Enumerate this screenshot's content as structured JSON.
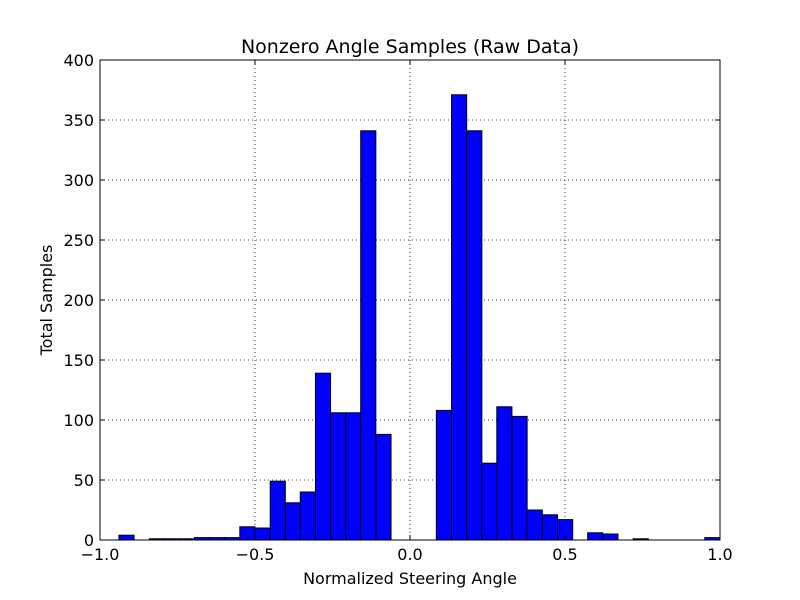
{
  "chart_data": {
    "type": "bar",
    "title": "Nonzero Angle Samples (Raw Data)",
    "xlabel": "Normalized Steering Angle",
    "ylabel": "Total Samples",
    "xlim": [
      -1.0,
      1.0
    ],
    "ylim": [
      0,
      400
    ],
    "xticks": [
      "−1.0",
      "−0.5",
      "0.0",
      "0.5",
      "1.0"
    ],
    "xtick_values": [
      -1.0,
      -0.5,
      0.0,
      0.5,
      1.0
    ],
    "yticks": [
      "0",
      "50",
      "100",
      "150",
      "200",
      "250",
      "300",
      "350",
      "400"
    ],
    "ytick_values": [
      0,
      50,
      100,
      150,
      200,
      250,
      300,
      350,
      400
    ],
    "grid": true,
    "bin_width": 0.0488,
    "bar_color": "#0000ff",
    "edge_color": "#000000",
    "bins": [
      {
        "x0": -0.939,
        "value": 4
      },
      {
        "x0": -0.89,
        "value": 0
      },
      {
        "x0": -0.841,
        "value": 1
      },
      {
        "x0": -0.793,
        "value": 1
      },
      {
        "x0": -0.744,
        "value": 1
      },
      {
        "x0": -0.695,
        "value": 2
      },
      {
        "x0": -0.646,
        "value": 2
      },
      {
        "x0": -0.598,
        "value": 2
      },
      {
        "x0": -0.549,
        "value": 11
      },
      {
        "x0": -0.5,
        "value": 10
      },
      {
        "x0": -0.451,
        "value": 49
      },
      {
        "x0": -0.402,
        "value": 31
      },
      {
        "x0": -0.354,
        "value": 40
      },
      {
        "x0": -0.305,
        "value": 139
      },
      {
        "x0": -0.256,
        "value": 106
      },
      {
        "x0": -0.207,
        "value": 106
      },
      {
        "x0": -0.159,
        "value": 341
      },
      {
        "x0": -0.11,
        "value": 88
      },
      {
        "x0": 0.085,
        "value": 108
      },
      {
        "x0": 0.134,
        "value": 371
      },
      {
        "x0": 0.183,
        "value": 341
      },
      {
        "x0": 0.232,
        "value": 64
      },
      {
        "x0": 0.28,
        "value": 111
      },
      {
        "x0": 0.329,
        "value": 103
      },
      {
        "x0": 0.378,
        "value": 25
      },
      {
        "x0": 0.427,
        "value": 21
      },
      {
        "x0": 0.476,
        "value": 17
      },
      {
        "x0": 0.573,
        "value": 6
      },
      {
        "x0": 0.622,
        "value": 5
      },
      {
        "x0": 0.72,
        "value": 1
      },
      {
        "x0": 0.951,
        "value": 2
      }
    ]
  }
}
